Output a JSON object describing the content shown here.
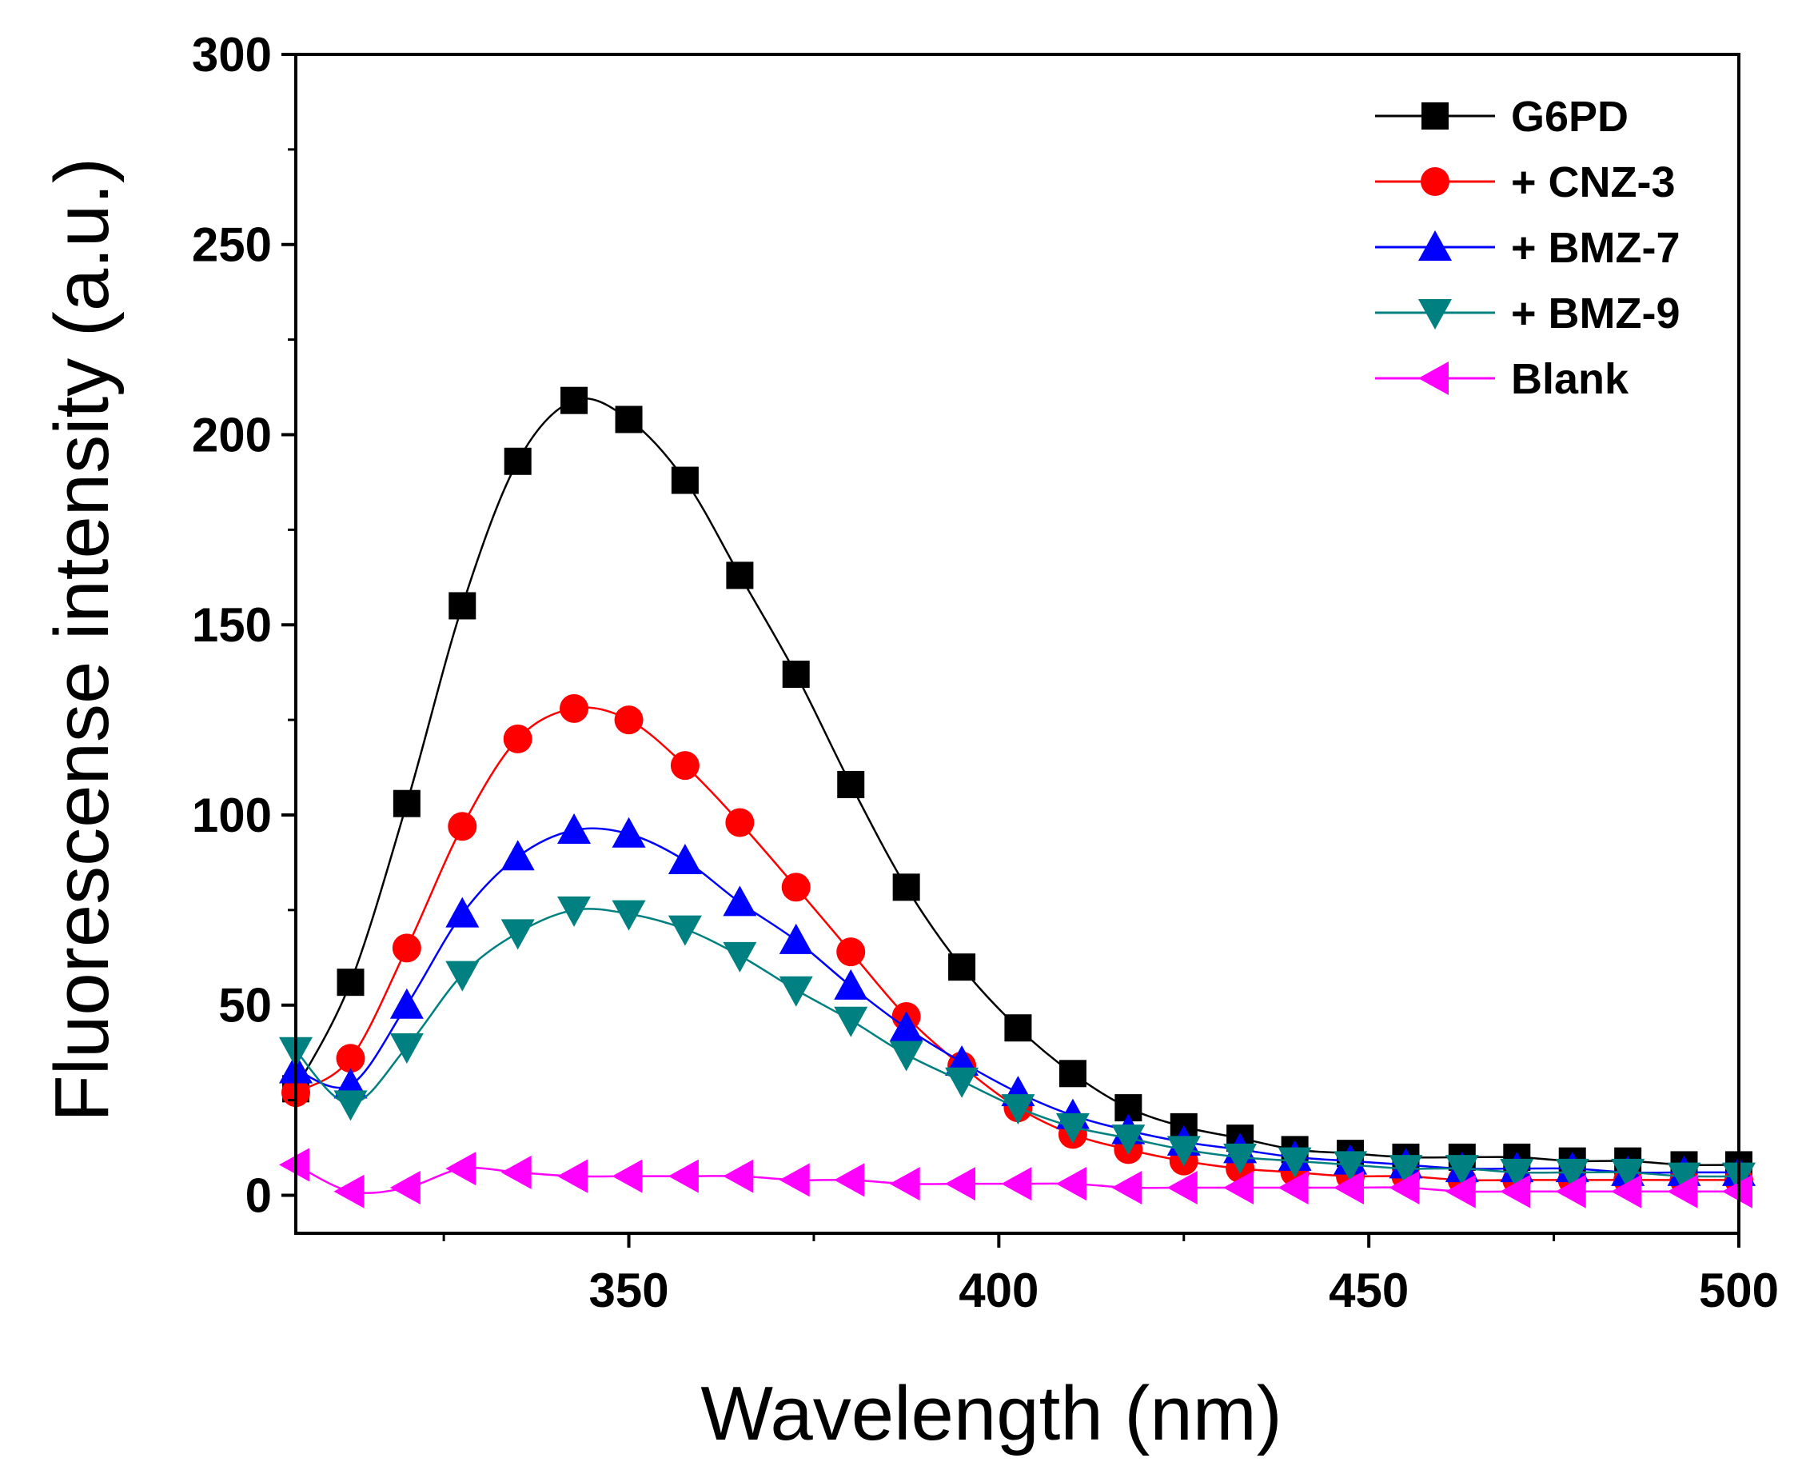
{
  "chart_data": {
    "type": "line",
    "title": "",
    "xlabel": "Wavelength (nm)",
    "ylabel": "Fluorescense intensity (a.u.)",
    "xlim": [
      305,
      500
    ],
    "ylim": [
      -10,
      300
    ],
    "xticks": [
      350,
      400,
      450,
      500
    ],
    "yticks": [
      0,
      50,
      100,
      150,
      200,
      250,
      300
    ],
    "grid": false,
    "legend_position": "top-right",
    "x": [
      305,
      312.4,
      320,
      327.5,
      335,
      342.6,
      350,
      357.6,
      365,
      372.6,
      380,
      387.5,
      395,
      402.6,
      410,
      417.5,
      425,
      432.6,
      440,
      447.5,
      455,
      462.6,
      470,
      477.5,
      485,
      492.6,
      500
    ],
    "series": [
      {
        "name": "G6PD",
        "color": "#000000",
        "marker": "square",
        "values": [
          28,
          56,
          103,
          155,
          193,
          209,
          204,
          188,
          163,
          137,
          108,
          81,
          60,
          44,
          32,
          23,
          18,
          15,
          12,
          11,
          10,
          10,
          10,
          9,
          9,
          8,
          8
        ]
      },
      {
        "name": "+ CNZ-3",
        "color": "#ff0000",
        "marker": "circle",
        "values": [
          27,
          36,
          65,
          97,
          120,
          128,
          125,
          113,
          98,
          81,
          64,
          47,
          34,
          23,
          16,
          12,
          9,
          7,
          6,
          5,
          5,
          4,
          4,
          4,
          4,
          4,
          4
        ]
      },
      {
        "name": "+ BMZ-7",
        "color": "#0000ff",
        "marker": "triangle-up",
        "values": [
          33,
          29,
          50,
          74,
          89,
          96,
          95,
          88,
          77,
          67,
          55,
          44,
          35,
          27,
          21,
          17,
          14,
          12,
          10,
          9,
          8,
          7,
          7,
          7,
          6,
          6,
          6
        ]
      },
      {
        "name": "+ BMZ-9",
        "color": "#008080",
        "marker": "triangle-down",
        "values": [
          38,
          24,
          39,
          58,
          69,
          75,
          74,
          70,
          63,
          54,
          46,
          37,
          30,
          23,
          18,
          15,
          12,
          10,
          9,
          8,
          7,
          7,
          6,
          6,
          6,
          5,
          5
        ]
      },
      {
        "name": "Blank",
        "color": "#ff00ff",
        "marker": "triangle-left",
        "values": [
          8,
          1,
          2,
          7,
          6,
          5,
          5,
          5,
          5,
          4,
          4,
          3,
          3,
          3,
          3,
          2,
          2,
          2,
          2,
          2,
          2,
          1,
          1,
          1,
          1,
          1,
          1
        ]
      }
    ]
  }
}
